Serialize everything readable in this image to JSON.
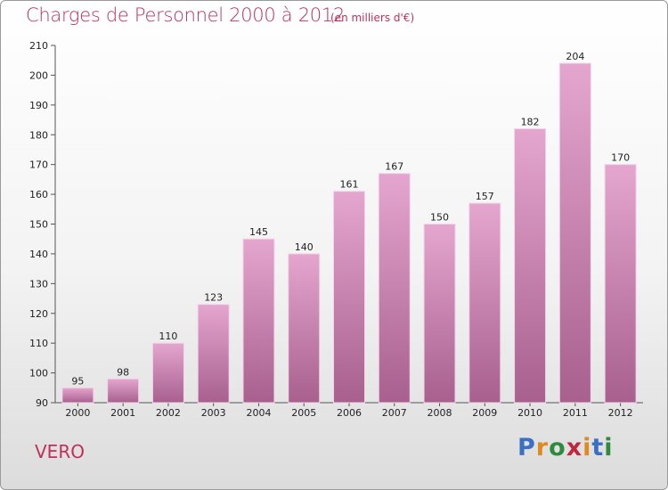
{
  "header": {
    "title": "Charges de Personnel 2000 à 2012",
    "subtitle": "(en milliers d'€)"
  },
  "footer": {
    "commune": "VERO",
    "logo_text": "Proxiti",
    "logo_letters": [
      {
        "ch": "P",
        "color": "#3a6fc2"
      },
      {
        "ch": "r",
        "color": "#e08a1e"
      },
      {
        "ch": "o",
        "color": "#2e8b3e"
      },
      {
        "ch": "x",
        "color": "#c02840"
      },
      {
        "ch": "i",
        "color": "#e08a1e"
      },
      {
        "ch": "t",
        "color": "#3a6fc2"
      },
      {
        "ch": "i",
        "color": "#2e8b3e"
      }
    ]
  },
  "colors": {
    "bar_top": "#e4a6cf",
    "bar_bottom": "#a8608e",
    "bar_edge": "#f3d3e8",
    "accent": "#c0305a",
    "text": "#222222"
  },
  "chart_data": {
    "type": "bar",
    "title": "Charges de Personnel 2000 à 2012",
    "subtitle": "(en milliers d'€)",
    "categories": [
      "2000",
      "2001",
      "2002",
      "2003",
      "2004",
      "2005",
      "2006",
      "2007",
      "2008",
      "2009",
      "2010",
      "2011",
      "2012"
    ],
    "values": [
      95,
      98,
      110,
      123,
      145,
      140,
      161,
      167,
      150,
      157,
      182,
      204,
      170
    ],
    "ylim": [
      90,
      210
    ],
    "yticks": [
      90,
      100,
      110,
      120,
      130,
      140,
      150,
      160,
      170,
      180,
      190,
      200,
      210
    ],
    "grid": false,
    "data_labels": true
  }
}
